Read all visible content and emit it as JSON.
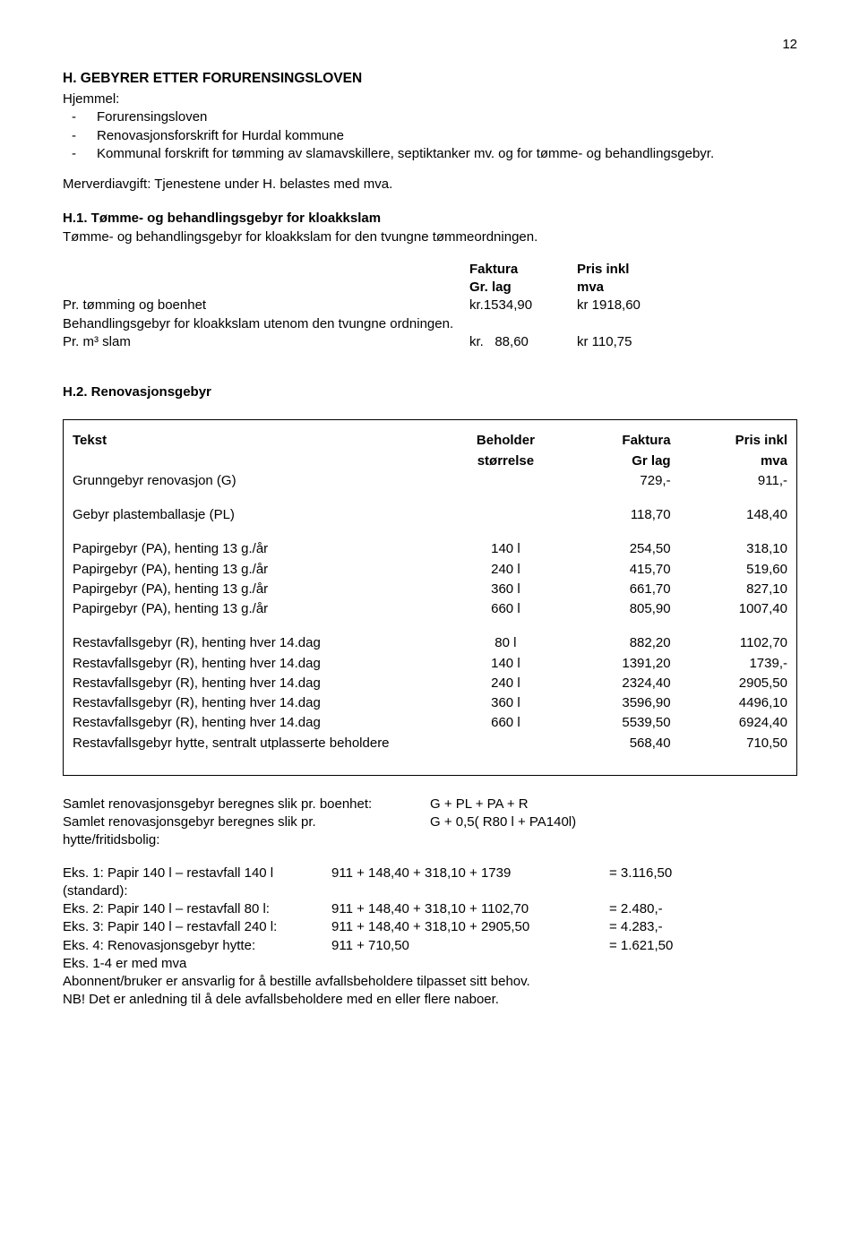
{
  "page_number": "12",
  "section_h": {
    "title": "H. GEBYRER ETTER FORURENSINGSLOVEN",
    "hjemmel_label": "Hjemmel:",
    "bullets": [
      "Forurensingsloven",
      "Renovasjonsforskrift for Hurdal kommune",
      "Kommunal forskrift for tømming av slamavskillere, septiktanker mv. og for tømme- og behandlingsgebyr."
    ],
    "mva_line": "Merverdiavgift: Tjenestene under H. belastes med mva."
  },
  "h1": {
    "title": "H.1. Tømme- og behandlingsgebyr for kloakkslam",
    "intro": "Tømme- og behandlingsgebyr for kloakkslam for den tvungne tømmeordningen.",
    "headers": {
      "faktura": "Faktura",
      "grlag": "Gr. lag",
      "prisinkl": "Pris inkl",
      "mva": "mva"
    },
    "rows": [
      {
        "label": "Pr. tømming og boenhet",
        "faktura": "kr.1534,90",
        "pris": "kr 1918,60"
      }
    ],
    "behandling_line": "Behandlingsgebyr for kloakkslam utenom den tvungne ordningen.",
    "row2": {
      "label": "Pr. m³ slam",
      "faktura": "kr.   88,60",
      "pris": "kr 110,75"
    }
  },
  "h2": {
    "title": "H.2. Renovasjonsgebyr",
    "headers": {
      "tekst": "Tekst",
      "beholder": "Beholder",
      "storrelse": "størrelse",
      "faktura": "Faktura",
      "grlag": "Gr lag",
      "prisinkl": "Pris inkl",
      "mva": "mva"
    },
    "rows": [
      {
        "tekst": "Grunngebyr renovasjon (G)",
        "beh": "",
        "faktura": "729,-",
        "pris": "911,-"
      },
      {
        "blank": true
      },
      {
        "tekst": "Gebyr plastemballasje (PL)",
        "beh": "",
        "faktura": "118,70",
        "pris": "148,40"
      },
      {
        "blank": true
      },
      {
        "tekst": "Papirgebyr (PA), henting 13 g./år",
        "beh": "140 l",
        "faktura": "254,50",
        "pris": "318,10"
      },
      {
        "tekst": "Papirgebyr (PA), henting 13 g./år",
        "beh": "240 l",
        "faktura": "415,70",
        "pris": "519,60"
      },
      {
        "tekst": "Papirgebyr (PA), henting 13 g./år",
        "beh": "360 l",
        "faktura": "661,70",
        "pris": "827,10"
      },
      {
        "tekst": "Papirgebyr (PA), henting 13 g./år",
        "beh": "660 l",
        "faktura": "805,90",
        "pris": "1007,40"
      },
      {
        "blank": true
      },
      {
        "tekst": "Restavfallsgebyr (R), henting hver 14.dag",
        "beh": "80 l",
        "faktura": "882,20",
        "pris": "1102,70"
      },
      {
        "tekst": "Restavfallsgebyr (R), henting hver 14.dag",
        "beh": "140 l",
        "faktura": "1391,20",
        "pris": "1739,-"
      },
      {
        "tekst": "Restavfallsgebyr (R), henting hver 14.dag",
        "beh": "240 l",
        "faktura": "2324,40",
        "pris": "2905,50"
      },
      {
        "tekst": "Restavfallsgebyr (R), henting hver 14.dag",
        "beh": "360 l",
        "faktura": "3596,90",
        "pris": "4496,10"
      },
      {
        "tekst": "Restavfallsgebyr (R), henting hver 14.dag",
        "beh": "660 l",
        "faktura": "5539,50",
        "pris": "6924,40"
      },
      {
        "tekst": "Restavfallsgebyr hytte, sentralt utplasserte beholdere",
        "beh": "",
        "faktura": "568,40",
        "pris": "710,50"
      },
      {
        "blank": true
      }
    ]
  },
  "calc": {
    "line1_label": "Samlet renovasjonsgebyr beregnes slik pr. boenhet:",
    "line1_formula": "G + PL + PA + R",
    "line2_label": "Samlet renovasjonsgebyr beregnes slik pr. hytte/fritidsbolig:",
    "line2_formula": "G + 0,5( R80 l + PA140l)"
  },
  "eks": [
    {
      "label": "Eks. 1: Papir 140 l – restavfall 140 l (standard):",
      "calc": "911 + 148,40 + 318,10 + 1739",
      "sum": "= 3.116,50"
    },
    {
      "label": "Eks. 2: Papir 140 l – restavfall 80 l:",
      "calc": "911 + 148,40 + 318,10 + 1102,70",
      "sum": "= 2.480,-"
    },
    {
      "label": "Eks. 3: Papir 140 l – restavfall 240 l:",
      "calc": "911 + 148,40 + 318,10 + 2905,50",
      "sum": "= 4.283,-"
    },
    {
      "label": "Eks. 4: Renovasjonsgebyr hytte:",
      "calc": "911 + 710,50",
      "sum": "= 1.621,50"
    }
  ],
  "footer": {
    "line1": "Eks. 1-4 er med mva",
    "line2": "Abonnent/bruker er ansvarlig for å bestille avfallsbeholdere tilpasset sitt behov.",
    "line3": "NB! Det er anledning til å dele avfallsbeholdere med en eller flere naboer."
  }
}
